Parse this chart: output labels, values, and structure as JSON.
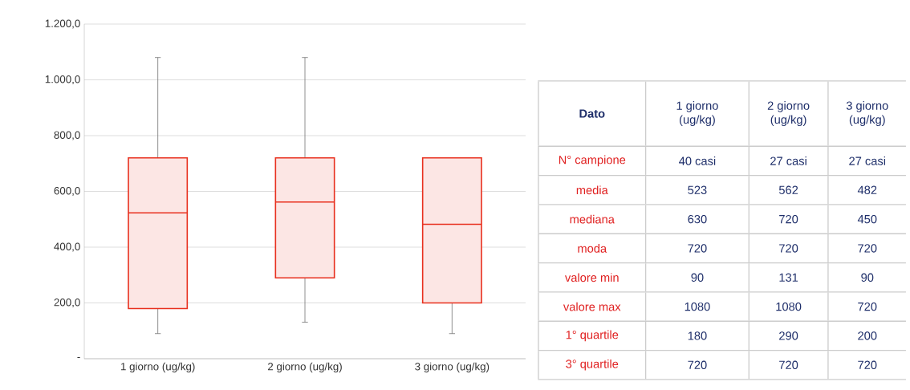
{
  "chart_data": [
    {
      "type": "box",
      "categories": [
        "1 giorno (ug/kg)",
        "2 giorno (ug/kg)",
        "3 giorno (ug/kg)"
      ],
      "series": [
        {
          "color": "#e8301e",
          "boxes": [
            {
              "low": 90,
              "q1": 180,
              "median": 523,
              "q3": 720,
              "high": 1080
            },
            {
              "low": 131,
              "q1": 290,
              "median": 562,
              "q3": 720,
              "high": 1080
            },
            {
              "low": 90,
              "q1": 200,
              "median": 482,
              "q3": 720,
              "high": 720
            }
          ]
        }
      ],
      "ylim": [
        0,
        1200
      ],
      "yticks": [
        {
          "value": 0,
          "label": "-"
        },
        {
          "value": 200,
          "label": "200,0"
        },
        {
          "value": 400,
          "label": "400,0"
        },
        {
          "value": 600,
          "label": "600,0"
        },
        {
          "value": 800,
          "label": "800,0"
        },
        {
          "value": 1000,
          "label": "1.000,0"
        },
        {
          "value": 1200,
          "label": "1.200,0"
        }
      ],
      "grid": "y"
    },
    {
      "type": "other",
      "title": "Dato",
      "categories": [
        "1 giorno (ug/kg)",
        "2 giorno (ug/kg)",
        "3 giorno (ug/kg)"
      ],
      "y_categories": [
        "N° campione",
        "media",
        "mediana",
        "moda",
        "valore min",
        "valore max",
        "1° quartile",
        "3° quartile"
      ],
      "cell_labels": [
        [
          "40 casi",
          "27 casi",
          "27 casi"
        ],
        [
          "523",
          "562",
          "482"
        ],
        [
          "630",
          "720",
          "450"
        ],
        [
          "720",
          "720",
          "720"
        ],
        [
          "90",
          "131",
          "90"
        ],
        [
          "1080",
          "1080",
          "720"
        ],
        [
          "180",
          "290",
          "200"
        ],
        [
          "720",
          "720",
          "720"
        ]
      ]
    }
  ]
}
